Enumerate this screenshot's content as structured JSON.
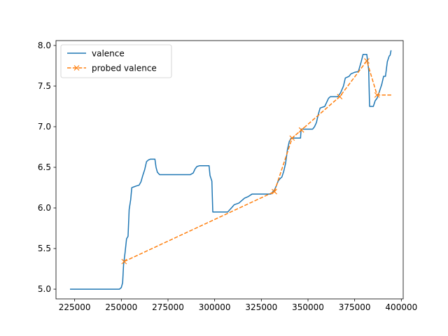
{
  "chart_data": {
    "type": "line",
    "title": "",
    "xlabel": "",
    "ylabel": "",
    "xlim": [
      215000,
      401000
    ],
    "ylim": [
      4.88,
      8.06
    ],
    "x_ticks": [
      225000,
      250000,
      275000,
      300000,
      325000,
      350000,
      375000,
      400000
    ],
    "y_ticks": [
      5.0,
      5.5,
      6.0,
      6.5,
      7.0,
      7.5,
      8.0
    ],
    "x_tick_labels": [
      "225000",
      "250000",
      "275000",
      "300000",
      "325000",
      "350000",
      "375000",
      "400000"
    ],
    "y_tick_labels": [
      "5.0",
      "5.5",
      "6.0",
      "6.5",
      "7.0",
      "7.5",
      "8.0"
    ],
    "grid": false,
    "legend_position": "top-left",
    "series": [
      {
        "name": "valence",
        "color": "#1f77b4",
        "style": "solid",
        "marker": "none",
        "points": [
          [
            222500,
            5.0
          ],
          [
            249000,
            5.0
          ],
          [
            250000,
            5.02
          ],
          [
            250700,
            5.08
          ],
          [
            251200,
            5.3
          ],
          [
            252000,
            5.45
          ],
          [
            252800,
            5.62
          ],
          [
            253600,
            5.65
          ],
          [
            254200,
            5.98
          ],
          [
            255000,
            6.1
          ],
          [
            255600,
            6.25
          ],
          [
            256800,
            6.26
          ],
          [
            258000,
            6.27
          ],
          [
            259500,
            6.28
          ],
          [
            260500,
            6.32
          ],
          [
            261500,
            6.4
          ],
          [
            262500,
            6.47
          ],
          [
            263500,
            6.57
          ],
          [
            264500,
            6.59
          ],
          [
            265500,
            6.6
          ],
          [
            268000,
            6.6
          ],
          [
            268600,
            6.5
          ],
          [
            269300,
            6.44
          ],
          [
            270500,
            6.41
          ],
          [
            276000,
            6.41
          ],
          [
            287000,
            6.41
          ],
          [
            288500,
            6.43
          ],
          [
            289500,
            6.48
          ],
          [
            290500,
            6.51
          ],
          [
            292000,
            6.52
          ],
          [
            297000,
            6.52
          ],
          [
            297500,
            6.4
          ],
          [
            298500,
            6.33
          ],
          [
            299000,
            5.95
          ],
          [
            307000,
            5.95
          ],
          [
            309000,
            6.0
          ],
          [
            310500,
            6.04
          ],
          [
            313000,
            6.06
          ],
          [
            314500,
            6.09
          ],
          [
            316000,
            6.12
          ],
          [
            318000,
            6.14
          ],
          [
            320000,
            6.17
          ],
          [
            330000,
            6.17
          ],
          [
            332000,
            6.22
          ],
          [
            333000,
            6.27
          ],
          [
            334000,
            6.33
          ],
          [
            335000,
            6.36
          ],
          [
            336000,
            6.38
          ],
          [
            337000,
            6.45
          ],
          [
            338000,
            6.55
          ],
          [
            339000,
            6.72
          ],
          [
            340000,
            6.82
          ],
          [
            341000,
            6.86
          ],
          [
            346000,
            6.86
          ],
          [
            346300,
            6.97
          ],
          [
            352500,
            6.97
          ],
          [
            353500,
            7.0
          ],
          [
            354500,
            7.05
          ],
          [
            355500,
            7.15
          ],
          [
            356500,
            7.23
          ],
          [
            359000,
            7.25
          ],
          [
            360000,
            7.3
          ],
          [
            361000,
            7.35
          ],
          [
            362000,
            7.37
          ],
          [
            366000,
            7.37
          ],
          [
            367500,
            7.42
          ],
          [
            369000,
            7.5
          ],
          [
            370000,
            7.6
          ],
          [
            372000,
            7.62
          ],
          [
            373000,
            7.65
          ],
          [
            375000,
            7.67
          ],
          [
            377000,
            7.68
          ],
          [
            378500,
            7.8
          ],
          [
            379500,
            7.89
          ],
          [
            381500,
            7.89
          ],
          [
            382500,
            7.7
          ],
          [
            383000,
            7.25
          ],
          [
            385000,
            7.25
          ],
          [
            386000,
            7.32
          ],
          [
            387000,
            7.35
          ],
          [
            388500,
            7.45
          ],
          [
            389500,
            7.52
          ],
          [
            390500,
            7.62
          ],
          [
            391500,
            7.62
          ],
          [
            392500,
            7.8
          ],
          [
            393500,
            7.87
          ],
          [
            394000,
            7.88
          ],
          [
            394500,
            7.94
          ]
        ]
      },
      {
        "name": "probed valence",
        "color": "#ff7f0e",
        "style": "dashed",
        "marker": "x",
        "points": [
          [
            251500,
            5.34
          ],
          [
            332000,
            6.2
          ],
          [
            341500,
            6.86
          ],
          [
            346500,
            6.96
          ],
          [
            367000,
            7.37
          ],
          [
            381500,
            7.81
          ],
          [
            387000,
            7.39
          ],
          [
            395000,
            7.39
          ]
        ],
        "marker_indices": [
          0,
          1,
          2,
          3,
          4,
          5,
          6
        ]
      }
    ]
  }
}
